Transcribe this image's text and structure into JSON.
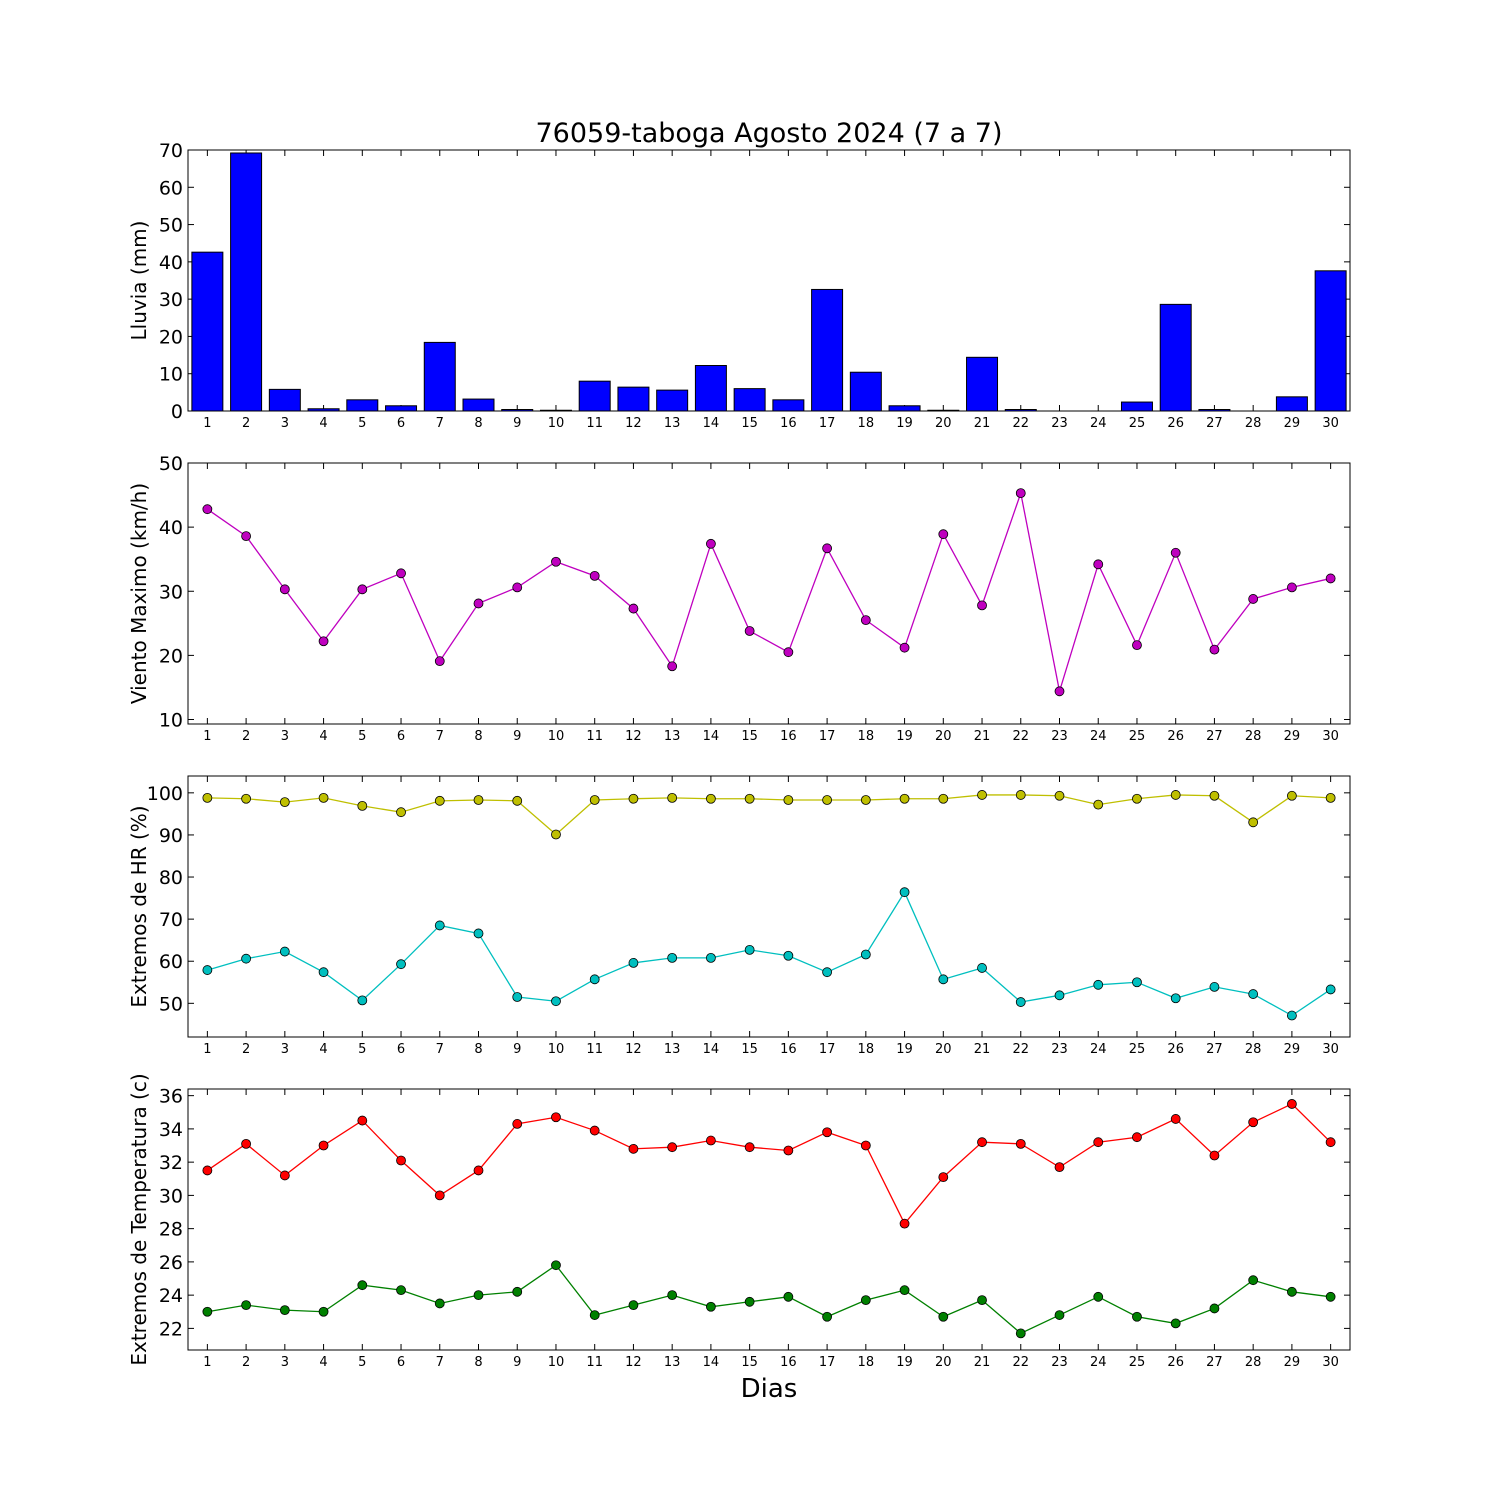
{
  "chart_data": [
    {
      "type": "bar",
      "title": "76059-taboga Agosto 2024  (7 a 7)",
      "ylabel": "Lluvia (mm)",
      "xlabel": "",
      "ylim": [
        0,
        70
      ],
      "yticks": [
        0,
        10,
        20,
        30,
        40,
        50,
        60,
        70
      ],
      "x": [
        1,
        2,
        3,
        4,
        5,
        6,
        7,
        8,
        9,
        10,
        11,
        12,
        13,
        14,
        15,
        16,
        17,
        18,
        19,
        20,
        21,
        22,
        23,
        24,
        25,
        26,
        27,
        28,
        29,
        30
      ],
      "series": [
        {
          "color": "#0000ff",
          "values": [
            42.6,
            69.2,
            5.8,
            0.6,
            3.0,
            1.4,
            18.4,
            3.2,
            0.4,
            0.2,
            8.0,
            6.4,
            5.6,
            12.2,
            6.0,
            3.0,
            32.6,
            10.4,
            1.4,
            0.2,
            14.4,
            0.4,
            0.0,
            0.0,
            2.4,
            28.6,
            0.4,
            0.0,
            3.8,
            37.6
          ]
        }
      ]
    },
    {
      "type": "line",
      "title": "",
      "ylabel": "Viento Maximo (km/h)",
      "xlabel": "",
      "ylim": [
        9.3,
        50
      ],
      "yticks": [
        10,
        20,
        30,
        40,
        50
      ],
      "x": [
        1,
        2,
        3,
        4,
        5,
        6,
        7,
        8,
        9,
        10,
        11,
        12,
        13,
        14,
        15,
        16,
        17,
        18,
        19,
        20,
        21,
        22,
        23,
        24,
        25,
        26,
        27,
        28,
        29,
        30
      ],
      "series": [
        {
          "color": "#bf00bf",
          "values": [
            42.8,
            38.6,
            30.3,
            22.2,
            30.3,
            32.8,
            19.1,
            28.1,
            30.6,
            34.6,
            32.4,
            27.3,
            18.3,
            37.4,
            23.8,
            20.5,
            36.7,
            25.5,
            21.2,
            38.9,
            27.8,
            45.3,
            14.4,
            34.2,
            21.6,
            36.0,
            20.9,
            28.8,
            30.6,
            32.0
          ]
        }
      ]
    },
    {
      "type": "line",
      "title": "",
      "ylabel": "Extremos de HR (%)",
      "xlabel": "",
      "ylim": [
        42,
        104
      ],
      "yticks": [
        50,
        60,
        70,
        80,
        90,
        100
      ],
      "x": [
        1,
        2,
        3,
        4,
        5,
        6,
        7,
        8,
        9,
        10,
        11,
        12,
        13,
        14,
        15,
        16,
        17,
        18,
        19,
        20,
        21,
        22,
        23,
        24,
        25,
        26,
        27,
        28,
        29,
        30
      ],
      "series": [
        {
          "color": "#bfbf00",
          "values": [
            98.8,
            98.6,
            97.8,
            98.8,
            96.9,
            95.4,
            98.1,
            98.3,
            98.1,
            90.1,
            98.3,
            98.6,
            98.8,
            98.6,
            98.6,
            98.3,
            98.3,
            98.3,
            98.6,
            98.6,
            99.5,
            99.5,
            99.3,
            97.2,
            98.6,
            99.5,
            99.3,
            93.0,
            99.3,
            98.8
          ]
        },
        {
          "color": "#00bfbf",
          "values": [
            57.9,
            60.6,
            62.3,
            57.4,
            50.7,
            59.3,
            68.5,
            66.6,
            51.5,
            50.5,
            55.7,
            59.6,
            60.8,
            60.8,
            62.7,
            61.3,
            57.4,
            61.6,
            76.4,
            55.7,
            58.4,
            50.3,
            51.9,
            54.4,
            55.0,
            51.2,
            53.9,
            52.2,
            47.1,
            53.3
          ]
        }
      ]
    },
    {
      "type": "line",
      "title": "",
      "ylabel": "Extremos de Temperatura (c)",
      "xlabel": "Dias",
      "ylim": [
        20.7,
        36.4
      ],
      "yticks": [
        22,
        24,
        26,
        28,
        30,
        32,
        34,
        36
      ],
      "x": [
        1,
        2,
        3,
        4,
        5,
        6,
        7,
        8,
        9,
        10,
        11,
        12,
        13,
        14,
        15,
        16,
        17,
        18,
        19,
        20,
        21,
        22,
        23,
        24,
        25,
        26,
        27,
        28,
        29,
        30
      ],
      "series": [
        {
          "color": "#ff0000",
          "values": [
            31.5,
            33.1,
            31.2,
            33.0,
            34.5,
            32.1,
            30.0,
            31.5,
            34.3,
            34.7,
            33.9,
            32.8,
            32.9,
            33.3,
            32.9,
            32.7,
            33.8,
            33.0,
            28.3,
            31.1,
            33.2,
            33.1,
            31.7,
            33.2,
            33.5,
            34.6,
            32.4,
            34.4,
            35.5,
            33.2
          ]
        },
        {
          "color": "#008000",
          "values": [
            23.0,
            23.4,
            23.1,
            23.0,
            24.6,
            24.3,
            23.5,
            24.0,
            24.2,
            25.8,
            22.8,
            23.4,
            24.0,
            23.3,
            23.6,
            23.9,
            22.7,
            23.7,
            24.3,
            22.7,
            23.7,
            21.7,
            22.8,
            23.9,
            22.7,
            22.3,
            23.2,
            24.9,
            24.2,
            23.9
          ]
        }
      ]
    }
  ]
}
